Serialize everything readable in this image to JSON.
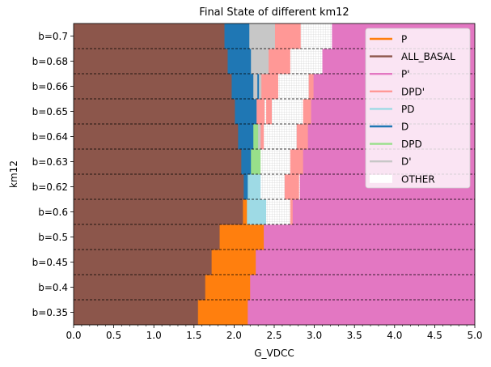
{
  "chart_data": {
    "type": "bar",
    "orientation": "horizontal",
    "stacked": true,
    "title": "Final State of different km12",
    "xlabel": "G_VDCC",
    "ylabel": "km12",
    "xlim": [
      0,
      5.0
    ],
    "xticks": [
      "0.0",
      "0.5",
      "1.0",
      "1.5",
      "2.0",
      "2.5",
      "3.0",
      "3.5",
      "4.0",
      "4.5",
      "5.0"
    ],
    "legend_position": "upper-right",
    "categories": [
      "b=0.35",
      "b=0.4",
      "b=0.45",
      "b=0.5",
      "b=0.6",
      "b=0.62",
      "b=0.63",
      "b=0.64",
      "b=0.65",
      "b=0.66",
      "b=0.68",
      "b=0.7"
    ],
    "states": [
      {
        "key": "P",
        "name": "P",
        "color": "#ff7f0e"
      },
      {
        "key": "ALL_BASAL",
        "name": "ALL_BASAL",
        "color": "#8c564b"
      },
      {
        "key": "Pp",
        "name": "P'",
        "color": "#e377c2"
      },
      {
        "key": "DPDp",
        "name": "DPD'",
        "color": "#ff9896"
      },
      {
        "key": "PD",
        "name": "PD",
        "color": "#9edae5"
      },
      {
        "key": "D",
        "name": "D",
        "color": "#1f77b4"
      },
      {
        "key": "DPD",
        "name": "DPD",
        "color": "#98df8a"
      },
      {
        "key": "Dp",
        "name": "D'",
        "color": "#c7c7c7"
      },
      {
        "key": "OTHER",
        "name": "OTHER",
        "color": "#ffffff"
      }
    ],
    "rows": [
      {
        "label": "b=0.35",
        "segments": [
          [
            "ALL_BASAL",
            0,
            1.55
          ],
          [
            "P",
            1.55,
            2.17
          ],
          [
            "Pp",
            2.17,
            5.0
          ]
        ]
      },
      {
        "label": "b=0.4",
        "segments": [
          [
            "ALL_BASAL",
            0,
            1.64
          ],
          [
            "P",
            1.64,
            2.2
          ],
          [
            "Pp",
            2.2,
            5.0
          ]
        ]
      },
      {
        "label": "b=0.45",
        "segments": [
          [
            "ALL_BASAL",
            0,
            1.72
          ],
          [
            "P",
            1.72,
            2.27
          ],
          [
            "Pp",
            2.27,
            5.0
          ]
        ]
      },
      {
        "label": "b=0.5",
        "segments": [
          [
            "ALL_BASAL",
            0,
            1.82
          ],
          [
            "P",
            1.82,
            2.37
          ],
          [
            "Pp",
            2.37,
            5.0
          ]
        ]
      },
      {
        "label": "b=0.6",
        "segments": [
          [
            "ALL_BASAL",
            0,
            2.11
          ],
          [
            "P",
            2.11,
            2.16
          ],
          [
            "PD",
            2.16,
            2.4
          ],
          [
            "OTHER",
            2.4,
            2.7
          ],
          [
            "DPDp",
            2.7,
            2.73
          ],
          [
            "Pp",
            2.73,
            5.0
          ]
        ]
      },
      {
        "label": "b=0.62",
        "segments": [
          [
            "ALL_BASAL",
            0,
            2.12
          ],
          [
            "D",
            2.12,
            2.17
          ],
          [
            "PD",
            2.17,
            2.33
          ],
          [
            "OTHER",
            2.33,
            2.63
          ],
          [
            "DPDp",
            2.63,
            2.81
          ],
          [
            "OTHER",
            2.81,
            2.82
          ],
          [
            "Pp",
            2.82,
            5.0
          ]
        ]
      },
      {
        "label": "b=0.63",
        "segments": [
          [
            "ALL_BASAL",
            0,
            2.09
          ],
          [
            "D",
            2.09,
            2.21
          ],
          [
            "DPD",
            2.21,
            2.33
          ],
          [
            "OTHER",
            2.33,
            2.7
          ],
          [
            "DPDp",
            2.7,
            2.86
          ],
          [
            "Pp",
            2.86,
            5.0
          ]
        ]
      },
      {
        "label": "b=0.64",
        "segments": [
          [
            "ALL_BASAL",
            0,
            2.05
          ],
          [
            "D",
            2.05,
            2.24
          ],
          [
            "DPD",
            2.24,
            2.3
          ],
          [
            "Dp",
            2.3,
            2.33
          ],
          [
            "DPDp",
            2.33,
            2.37
          ],
          [
            "OTHER",
            2.37,
            2.78
          ],
          [
            "DPDp",
            2.78,
            2.92
          ],
          [
            "Pp",
            2.92,
            5.0
          ]
        ]
      },
      {
        "label": "b=0.65",
        "segments": [
          [
            "ALL_BASAL",
            0,
            2.01
          ],
          [
            "D",
            2.01,
            2.28
          ],
          [
            "DPDp",
            2.28,
            2.38
          ],
          [
            "OTHER",
            2.38,
            2.4
          ],
          [
            "DPDp",
            2.4,
            2.47
          ],
          [
            "OTHER",
            2.47,
            2.86
          ],
          [
            "DPDp",
            2.86,
            2.96
          ],
          [
            "Pp",
            2.96,
            5.0
          ]
        ]
      },
      {
        "label": "b=0.66",
        "segments": [
          [
            "ALL_BASAL",
            0,
            1.97
          ],
          [
            "D",
            1.97,
            2.24
          ],
          [
            "Dp",
            2.24,
            2.29
          ],
          [
            "D",
            2.29,
            2.31
          ],
          [
            "Dp",
            2.31,
            2.34
          ],
          [
            "DPDp",
            2.34,
            2.55
          ],
          [
            "OTHER",
            2.55,
            2.93
          ],
          [
            "DPDp",
            2.93,
            2.99
          ],
          [
            "Pp",
            2.99,
            5.0
          ]
        ]
      },
      {
        "label": "b=0.68",
        "segments": [
          [
            "ALL_BASAL",
            0,
            1.92
          ],
          [
            "D",
            1.92,
            2.21
          ],
          [
            "Dp",
            2.21,
            2.43
          ],
          [
            "DPDp",
            2.43,
            2.7
          ],
          [
            "OTHER",
            2.7,
            3.1
          ],
          [
            "Pp",
            3.1,
            5.0
          ]
        ]
      },
      {
        "label": "b=0.7",
        "segments": [
          [
            "ALL_BASAL",
            0,
            1.88
          ],
          [
            "D",
            1.88,
            2.19
          ],
          [
            "Dp",
            2.19,
            2.51
          ],
          [
            "DPDp",
            2.51,
            2.83
          ],
          [
            "OTHER",
            2.83,
            3.22
          ],
          [
            "Pp",
            3.22,
            5.0
          ]
        ]
      }
    ]
  }
}
